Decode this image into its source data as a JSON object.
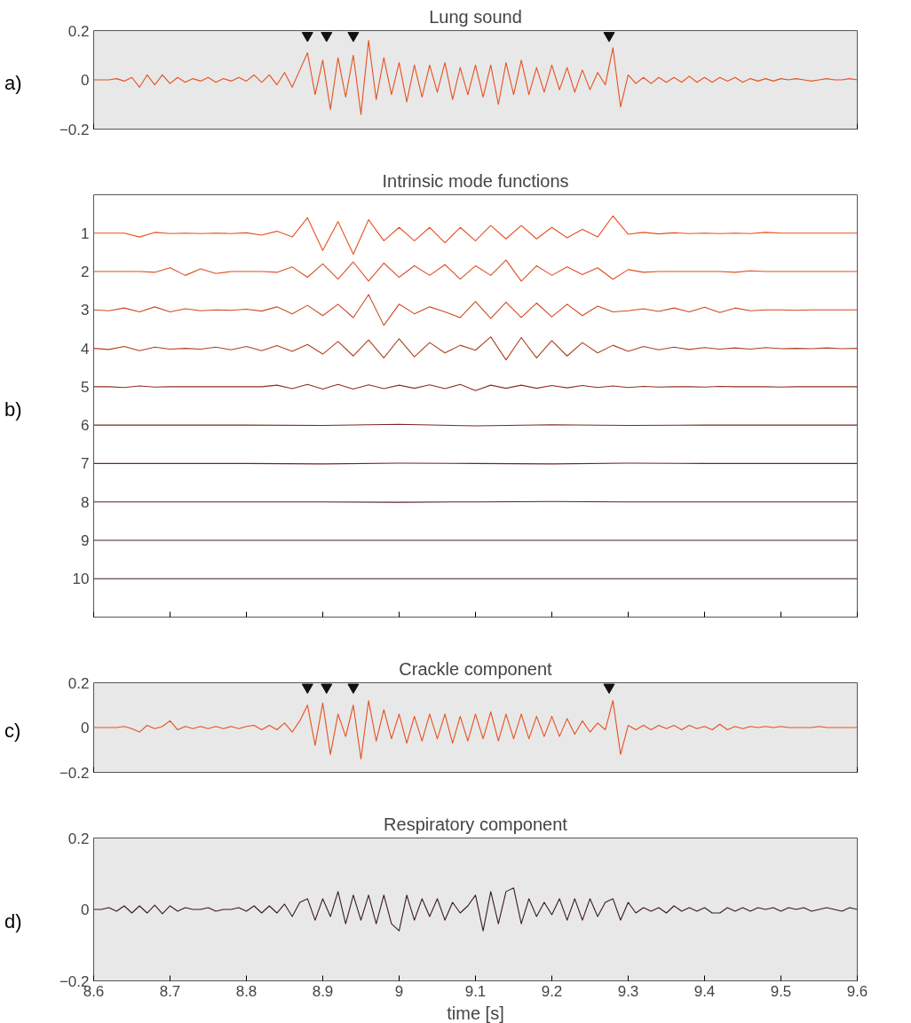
{
  "chart_data": [
    {
      "type": "line",
      "title": "Lung sound",
      "annotations": [
        "a)"
      ],
      "x": [
        8.6,
        8.61,
        8.62,
        8.63,
        8.64,
        8.65,
        8.66,
        8.67,
        8.68,
        8.69,
        8.7,
        8.71,
        8.72,
        8.73,
        8.74,
        8.75,
        8.76,
        8.77,
        8.78,
        8.79,
        8.8,
        8.81,
        8.82,
        8.83,
        8.84,
        8.85,
        8.86,
        8.87,
        8.88,
        8.89,
        8.9,
        8.91,
        8.92,
        8.93,
        8.94,
        8.95,
        8.96,
        8.97,
        8.98,
        8.99,
        9.0,
        9.01,
        9.02,
        9.03,
        9.04,
        9.05,
        9.06,
        9.07,
        9.08,
        9.09,
        9.1,
        9.11,
        9.12,
        9.13,
        9.14,
        9.15,
        9.16,
        9.17,
        9.18,
        9.19,
        9.2,
        9.21,
        9.22,
        9.23,
        9.24,
        9.25,
        9.26,
        9.27,
        9.28,
        9.29,
        9.3,
        9.31,
        9.32,
        9.33,
        9.34,
        9.35,
        9.36,
        9.37,
        9.38,
        9.39,
        9.4,
        9.41,
        9.42,
        9.43,
        9.44,
        9.45,
        9.46,
        9.47,
        9.48,
        9.49,
        9.5,
        9.51,
        9.52,
        9.53,
        9.54,
        9.55,
        9.56,
        9.57,
        9.58,
        9.59,
        9.6
      ],
      "series": [
        {
          "type": "scatter",
          "marker": "triangle",
          "color": "#111111",
          "x": [
            8.88,
            8.905,
            8.94,
            9.275
          ],
          "values": [
            0.18,
            0.18,
            0.18,
            0.18
          ]
        },
        {
          "color": "#e8501e",
          "values": [
            0,
            0,
            0,
            0.005,
            -0.005,
            0.01,
            -0.03,
            0.02,
            -0.02,
            0.02,
            -0.015,
            0.01,
            -0.01,
            0.005,
            -0.005,
            0.01,
            -0.01,
            0.005,
            -0.005,
            0.01,
            -0.005,
            0.02,
            -0.01,
            0.02,
            -0.02,
            0.03,
            -0.03,
            0.04,
            0.11,
            -0.06,
            0.08,
            -0.12,
            0.09,
            -0.07,
            0.1,
            -0.14,
            0.16,
            -0.08,
            0.09,
            -0.06,
            0.07,
            -0.09,
            0.06,
            -0.07,
            0.06,
            -0.05,
            0.07,
            -0.08,
            0.05,
            -0.06,
            0.06,
            -0.07,
            0.06,
            -0.1,
            0.07,
            -0.06,
            0.08,
            -0.06,
            0.05,
            -0.05,
            0.06,
            -0.04,
            0.05,
            -0.05,
            0.04,
            -0.04,
            0.03,
            -0.02,
            0.13,
            -0.11,
            0.02,
            -0.015,
            0.01,
            -0.015,
            0.01,
            -0.01,
            0.01,
            -0.01,
            0.015,
            -0.01,
            0.01,
            -0.01,
            0.01,
            -0.005,
            0.01,
            -0.01,
            0.005,
            -0.005,
            0.005,
            -0.005,
            0.005,
            0,
            0.005,
            0,
            -0.005,
            0,
            0.005,
            0,
            0,
            0.005,
            0
          ]
        }
      ],
      "xlim": [
        8.6,
        9.6
      ],
      "xticks": [
        {
          "value": 8.6,
          "label": null
        },
        {
          "value": 9.6,
          "label": null
        }
      ],
      "ylim": [
        -0.2,
        0.2
      ],
      "yticks": [
        -0.2,
        0,
        0.2
      ],
      "tick_labels": "y",
      "grid": false
    },
    {
      "type": "line",
      "title": "Intrinsic mode functions",
      "annotations": [
        "b)"
      ],
      "series": [
        {
          "color": "#e85020",
          "x": [
            8.6,
            8.62,
            8.64,
            8.66,
            8.68,
            8.7,
            8.72,
            8.74,
            8.76,
            8.78,
            8.8,
            8.82,
            8.84,
            8.86,
            8.88,
            8.9,
            8.92,
            8.94,
            8.96,
            8.98,
            9.0,
            9.02,
            9.04,
            9.06,
            9.08,
            9.1,
            9.12,
            9.14,
            9.16,
            9.18,
            9.2,
            9.22,
            9.24,
            9.26,
            9.28,
            9.3,
            9.32,
            9.34,
            9.36,
            9.38,
            9.4,
            9.42,
            9.44,
            9.46,
            9.48,
            9.5,
            9.52,
            9.54,
            9.56,
            9.58,
            9.6
          ],
          "values": [
            1,
            1,
            1,
            1.1,
            0.98,
            1.01,
            1,
            1.01,
            1,
            1.01,
            0.99,
            1.05,
            0.95,
            1.1,
            0.6,
            1.45,
            0.7,
            1.55,
            0.65,
            1.2,
            0.85,
            1.2,
            0.85,
            1.25,
            0.85,
            1.2,
            0.8,
            1.15,
            0.8,
            1.15,
            0.85,
            1.12,
            0.9,
            1.1,
            0.55,
            1.03,
            0.98,
            1.02,
            0.99,
            1.01,
            1,
            1.01,
            1,
            1.01,
            0.98,
            1,
            1,
            1,
            1,
            1,
            1
          ]
        },
        {
          "color": "#e04e20",
          "x": [
            8.6,
            8.62,
            8.64,
            8.66,
            8.68,
            8.7,
            8.72,
            8.74,
            8.76,
            8.78,
            8.8,
            8.82,
            8.84,
            8.86,
            8.88,
            8.9,
            8.92,
            8.94,
            8.96,
            8.98,
            9.0,
            9.02,
            9.04,
            9.06,
            9.08,
            9.1,
            9.12,
            9.14,
            9.16,
            9.18,
            9.2,
            9.22,
            9.24,
            9.26,
            9.28,
            9.3,
            9.32,
            9.34,
            9.36,
            9.38,
            9.4,
            9.42,
            9.44,
            9.46,
            9.48,
            9.5,
            9.52,
            9.54,
            9.56,
            9.58,
            9.6
          ],
          "values": [
            2,
            2,
            2,
            2,
            2.02,
            1.9,
            2.1,
            1.93,
            2.05,
            2,
            2,
            2,
            2.02,
            1.88,
            2.15,
            1.8,
            2.2,
            1.75,
            2.25,
            1.78,
            2.15,
            1.85,
            2.1,
            1.82,
            2.2,
            1.85,
            2.1,
            1.7,
            2.25,
            1.85,
            2.1,
            1.88,
            2.08,
            1.9,
            2.2,
            1.95,
            2.02,
            2,
            2,
            2,
            2,
            2,
            2.02,
            1.98,
            2,
            2,
            2,
            2,
            2,
            2,
            2
          ]
        },
        {
          "color": "#d04a20",
          "x": [
            8.6,
            8.62,
            8.64,
            8.66,
            8.68,
            8.7,
            8.72,
            8.74,
            8.76,
            8.78,
            8.8,
            8.82,
            8.84,
            8.86,
            8.88,
            8.9,
            8.92,
            8.94,
            8.96,
            8.98,
            9.0,
            9.02,
            9.04,
            9.06,
            9.08,
            9.1,
            9.12,
            9.14,
            9.16,
            9.18,
            9.2,
            9.22,
            9.24,
            9.26,
            9.28,
            9.3,
            9.32,
            9.34,
            9.36,
            9.38,
            9.4,
            9.42,
            9.44,
            9.46,
            9.48,
            9.5,
            9.52,
            9.54,
            9.56,
            9.58,
            9.6
          ],
          "values": [
            3,
            3.02,
            2.95,
            3.05,
            2.92,
            3.05,
            2.97,
            3.02,
            3,
            3.01,
            2.98,
            3.03,
            2.92,
            3.1,
            2.88,
            3.15,
            2.85,
            3.2,
            2.6,
            3.4,
            2.85,
            3.1,
            2.92,
            3.05,
            3.2,
            2.78,
            3.22,
            2.8,
            3.2,
            2.82,
            3.18,
            2.85,
            3.15,
            2.9,
            3.05,
            3.02,
            2.97,
            3.04,
            2.95,
            3.05,
            2.93,
            3.07,
            2.95,
            3.02,
            3,
            3,
            3.01,
            3,
            3,
            3,
            3
          ]
        },
        {
          "color": "#b0401f",
          "x": [
            8.6,
            8.62,
            8.64,
            8.66,
            8.68,
            8.7,
            8.72,
            8.74,
            8.76,
            8.78,
            8.8,
            8.82,
            8.84,
            8.86,
            8.88,
            8.9,
            8.92,
            8.94,
            8.96,
            8.98,
            9.0,
            9.02,
            9.04,
            9.06,
            9.08,
            9.1,
            9.12,
            9.14,
            9.16,
            9.18,
            9.2,
            9.22,
            9.24,
            9.26,
            9.28,
            9.3,
            9.32,
            9.34,
            9.36,
            9.38,
            9.4,
            9.42,
            9.44,
            9.46,
            9.48,
            9.5,
            9.52,
            9.54,
            9.56,
            9.58,
            9.6
          ],
          "values": [
            4,
            4.03,
            3.95,
            4.06,
            3.97,
            4.02,
            4,
            4.02,
            3.97,
            4.04,
            3.95,
            4.06,
            3.93,
            4.08,
            3.9,
            4.15,
            3.82,
            4.2,
            3.78,
            4.25,
            3.75,
            4.22,
            3.85,
            4.12,
            3.92,
            4.05,
            3.7,
            4.3,
            3.72,
            4.25,
            3.8,
            4.2,
            3.85,
            4.12,
            3.92,
            4.08,
            3.95,
            4.04,
            3.97,
            4.03,
            3.98,
            4.02,
            3.99,
            4.02,
            3.98,
            4.01,
            4,
            4.01,
            3.99,
            4.01,
            4
          ]
        },
        {
          "color": "#903020",
          "x": [
            8.6,
            8.62,
            8.64,
            8.66,
            8.68,
            8.7,
            8.72,
            8.74,
            8.76,
            8.78,
            8.8,
            8.82,
            8.84,
            8.86,
            8.88,
            8.9,
            8.92,
            8.94,
            8.96,
            8.98,
            9.0,
            9.02,
            9.04,
            9.06,
            9.08,
            9.1,
            9.12,
            9.14,
            9.16,
            9.18,
            9.2,
            9.22,
            9.24,
            9.26,
            9.28,
            9.3,
            9.32,
            9.34,
            9.36,
            9.38,
            9.4,
            9.42,
            9.44,
            9.46,
            9.48,
            9.5,
            9.52,
            9.54,
            9.56,
            9.58,
            9.6
          ],
          "values": [
            5,
            5,
            5.02,
            4.98,
            5.01,
            5,
            5,
            5,
            5,
            5,
            5,
            5,
            4.96,
            5.05,
            4.94,
            5.06,
            4.94,
            5.06,
            4.95,
            5.05,
            4.96,
            5.04,
            4.95,
            5.05,
            4.94,
            5.1,
            4.96,
            5.04,
            4.96,
            5.04,
            4.97,
            5.03,
            4.97,
            5.02,
            4.98,
            5.02,
            4.99,
            5.01,
            5,
            5,
            5.01,
            4.99,
            5,
            5,
            5,
            5.01,
            5,
            5,
            5,
            5,
            5
          ]
        },
        {
          "color": "#7a2a20",
          "x": [
            8.6,
            8.7,
            8.8,
            8.9,
            9.0,
            9.1,
            9.2,
            9.3,
            9.4,
            9.5,
            9.6
          ],
          "values": [
            6,
            6,
            6,
            6.01,
            5.98,
            6.02,
            5.99,
            6.01,
            6,
            6,
            6
          ]
        },
        {
          "color": "#6a2525",
          "x": [
            8.6,
            8.7,
            8.8,
            8.9,
            9.0,
            9.1,
            9.2,
            9.3,
            9.4,
            9.5,
            9.6
          ],
          "values": [
            7,
            7,
            7,
            7.01,
            6.99,
            7,
            7.01,
            6.99,
            7,
            7,
            7
          ]
        },
        {
          "color": "#5a2028",
          "x": [
            8.6,
            8.7,
            8.8,
            8.9,
            9.0,
            9.1,
            9.2,
            9.3,
            9.4,
            9.5,
            9.6
          ],
          "values": [
            8,
            8,
            8,
            8,
            8.01,
            8,
            7.99,
            8,
            8,
            8,
            8
          ]
        },
        {
          "color": "#4a1c28",
          "x": [
            8.6,
            8.7,
            8.8,
            8.9,
            9.0,
            9.1,
            9.2,
            9.3,
            9.4,
            9.5,
            9.6
          ],
          "values": [
            9,
            9,
            9,
            9,
            9,
            9,
            9,
            9,
            9,
            9,
            9
          ]
        },
        {
          "color": "#3a1a25",
          "x": [
            8.6,
            8.7,
            8.8,
            8.9,
            9.0,
            9.1,
            9.2,
            9.3,
            9.4,
            9.5,
            9.6
          ],
          "values": [
            10,
            10,
            10,
            10,
            10,
            10,
            10,
            10,
            10,
            10,
            10
          ]
        }
      ],
      "xlim": [
        8.6,
        9.6
      ],
      "xticks": [
        {
          "value": 8.6,
          "label": null
        },
        {
          "value": 8.7,
          "label": null
        },
        {
          "value": 8.8,
          "label": null
        },
        {
          "value": 8.9,
          "label": null
        },
        {
          "value": 9.0,
          "label": null
        },
        {
          "value": 9.1,
          "label": null
        },
        {
          "value": 9.2,
          "label": null
        },
        {
          "value": 9.3,
          "label": null
        },
        {
          "value": 9.4,
          "label": null
        },
        {
          "value": 9.5,
          "label": null
        },
        {
          "value": 9.6,
          "label": null
        }
      ],
      "ylim": [
        11,
        0
      ],
      "yticks": [
        1,
        2,
        3,
        4,
        5,
        6,
        7,
        8,
        9,
        10
      ],
      "tick_labels": "y",
      "grid": false
    },
    {
      "type": "line",
      "title": "Crackle component",
      "annotations": [
        "c)"
      ],
      "x": [
        8.6,
        8.61,
        8.62,
        8.63,
        8.64,
        8.65,
        8.66,
        8.67,
        8.68,
        8.69,
        8.7,
        8.71,
        8.72,
        8.73,
        8.74,
        8.75,
        8.76,
        8.77,
        8.78,
        8.79,
        8.8,
        8.81,
        8.82,
        8.83,
        8.84,
        8.85,
        8.86,
        8.87,
        8.88,
        8.89,
        8.9,
        8.91,
        8.92,
        8.93,
        8.94,
        8.95,
        8.96,
        8.97,
        8.98,
        8.99,
        9.0,
        9.01,
        9.02,
        9.03,
        9.04,
        9.05,
        9.06,
        9.07,
        9.08,
        9.09,
        9.1,
        9.11,
        9.12,
        9.13,
        9.14,
        9.15,
        9.16,
        9.17,
        9.18,
        9.19,
        9.2,
        9.21,
        9.22,
        9.23,
        9.24,
        9.25,
        9.26,
        9.27,
        9.28,
        9.29,
        9.3,
        9.31,
        9.32,
        9.33,
        9.34,
        9.35,
        9.36,
        9.37,
        9.38,
        9.39,
        9.4,
        9.41,
        9.42,
        9.43,
        9.44,
        9.45,
        9.46,
        9.47,
        9.48,
        9.49,
        9.5,
        9.51,
        9.52,
        9.53,
        9.54,
        9.55,
        9.56,
        9.57,
        9.58,
        9.59,
        9.6
      ],
      "series": [
        {
          "type": "scatter",
          "marker": "triangle",
          "color": "#111111",
          "x": [
            8.88,
            8.905,
            8.94,
            9.275
          ],
          "values": [
            0.18,
            0.18,
            0.18,
            0.18
          ]
        },
        {
          "color": "#e8501e",
          "values": [
            0,
            0,
            0,
            0,
            0.005,
            -0.005,
            -0.02,
            0.01,
            -0.005,
            0.005,
            0.03,
            -0.01,
            0.005,
            -0.005,
            0.005,
            -0.005,
            0.005,
            -0.005,
            0.005,
            -0.005,
            0.005,
            0.01,
            -0.01,
            0.01,
            -0.01,
            0.02,
            -0.02,
            0.03,
            0.1,
            -0.08,
            0.11,
            -0.12,
            0.06,
            -0.04,
            0.1,
            -0.14,
            0.12,
            -0.06,
            0.08,
            -0.05,
            0.06,
            -0.07,
            0.05,
            -0.06,
            0.06,
            -0.05,
            0.06,
            -0.07,
            0.05,
            -0.06,
            0.06,
            -0.05,
            0.07,
            -0.06,
            0.06,
            -0.05,
            0.06,
            -0.05,
            0.05,
            -0.04,
            0.05,
            -0.04,
            0.04,
            -0.03,
            0.03,
            -0.02,
            0.02,
            -0.01,
            0.12,
            -0.12,
            0.01,
            -0.01,
            0.01,
            -0.01,
            0.01,
            -0.005,
            0.01,
            -0.01,
            0.01,
            -0.005,
            0.005,
            -0.01,
            0.015,
            -0.01,
            0.005,
            -0.005,
            0.005,
            0,
            0.005,
            0,
            0.005,
            0,
            0,
            0,
            0,
            0.005,
            0,
            0,
            0,
            0,
            0
          ]
        }
      ],
      "xlim": [
        8.6,
        9.6
      ],
      "xticks": [
        {
          "value": 8.6,
          "label": null
        },
        {
          "value": 9.6,
          "label": null
        }
      ],
      "ylim": [
        -0.2,
        0.2
      ],
      "yticks": [
        -0.2,
        0,
        0.2
      ],
      "tick_labels": "y",
      "grid": false
    },
    {
      "type": "line",
      "title": "Respiratory component",
      "xlabel": "time [s]",
      "annotations": [
        "d)"
      ],
      "x": [
        8.6,
        8.61,
        8.62,
        8.63,
        8.64,
        8.65,
        8.66,
        8.67,
        8.68,
        8.69,
        8.7,
        8.71,
        8.72,
        8.73,
        8.74,
        8.75,
        8.76,
        8.77,
        8.78,
        8.79,
        8.8,
        8.81,
        8.82,
        8.83,
        8.84,
        8.85,
        8.86,
        8.87,
        8.88,
        8.89,
        8.9,
        8.91,
        8.92,
        8.93,
        8.94,
        8.95,
        8.96,
        8.97,
        8.98,
        8.99,
        9.0,
        9.01,
        9.02,
        9.03,
        9.04,
        9.05,
        9.06,
        9.07,
        9.08,
        9.09,
        9.1,
        9.11,
        9.12,
        9.13,
        9.14,
        9.15,
        9.16,
        9.17,
        9.18,
        9.19,
        9.2,
        9.21,
        9.22,
        9.23,
        9.24,
        9.25,
        9.26,
        9.27,
        9.28,
        9.29,
        9.3,
        9.31,
        9.32,
        9.33,
        9.34,
        9.35,
        9.36,
        9.37,
        9.38,
        9.39,
        9.4,
        9.41,
        9.42,
        9.43,
        9.44,
        9.45,
        9.46,
        9.47,
        9.48,
        9.49,
        9.5,
        9.51,
        9.52,
        9.53,
        9.54,
        9.55,
        9.56,
        9.57,
        9.58,
        9.59,
        9.6
      ],
      "series": [
        {
          "color": "#3a1a25",
          "values": [
            0,
            0,
            0.005,
            -0.005,
            0.01,
            -0.01,
            0.01,
            -0.01,
            0.012,
            -0.012,
            0.01,
            -0.005,
            0.005,
            0,
            0,
            0.005,
            -0.005,
            0,
            0,
            0.005,
            -0.005,
            0.01,
            -0.01,
            0.01,
            -0.01,
            0.015,
            -0.02,
            0.02,
            0.03,
            -0.03,
            0.03,
            -0.02,
            0.05,
            -0.04,
            0.04,
            -0.03,
            0.04,
            -0.04,
            0.04,
            -0.04,
            -0.06,
            0.04,
            -0.03,
            0.03,
            -0.02,
            0.03,
            -0.03,
            0.02,
            -0.01,
            0.01,
            0.04,
            -0.06,
            0.05,
            -0.04,
            0.05,
            0.06,
            -0.04,
            0.03,
            -0.02,
            0.02,
            -0.015,
            0.03,
            -0.03,
            0.03,
            -0.03,
            0.03,
            -0.02,
            0.02,
            0.03,
            -0.03,
            0.02,
            -0.01,
            0.005,
            -0.005,
            0.005,
            -0.01,
            0.01,
            -0.005,
            0.005,
            -0.005,
            0.005,
            -0.01,
            -0.01,
            0.005,
            -0.005,
            0.005,
            -0.005,
            0.005,
            0,
            0.005,
            -0.005,
            0.005,
            0,
            0.005,
            -0.005,
            0,
            0.005,
            0,
            -0.005,
            0.005,
            0
          ]
        }
      ],
      "xlim": [
        8.6,
        9.6
      ],
      "xticks": [
        8.6,
        8.7,
        8.8,
        8.9,
        9,
        9.1,
        9.2,
        9.3,
        9.4,
        9.5,
        9.6
      ],
      "ylim": [
        -0.2,
        0.2
      ],
      "yticks": [
        -0.2,
        0,
        0.2
      ],
      "grid": false
    }
  ]
}
